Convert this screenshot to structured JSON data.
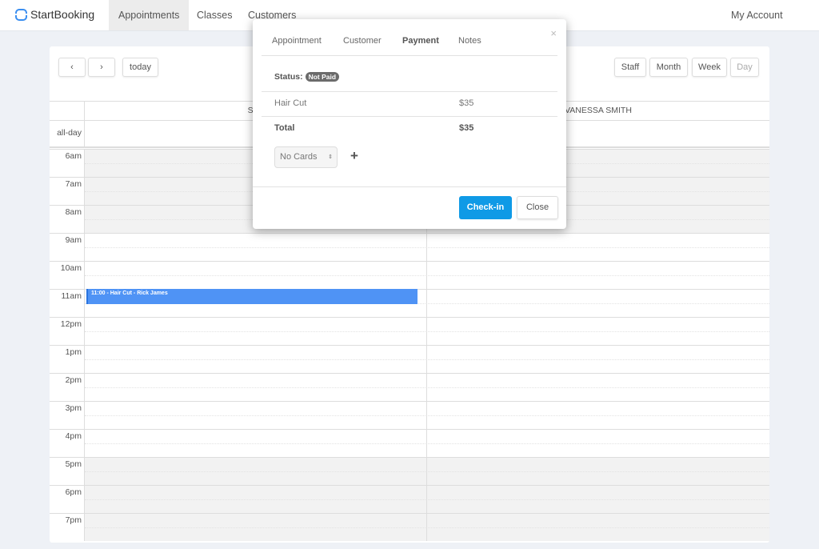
{
  "nav": {
    "brand": "StartBooking",
    "items": [
      {
        "label": "Appointments",
        "active": true
      },
      {
        "label": "Classes"
      },
      {
        "label": "Customers"
      }
    ],
    "account": "My Account"
  },
  "toolbar": {
    "today": "today",
    "views": [
      "Staff",
      "Month",
      "Week",
      "Day"
    ],
    "active_view": "Day"
  },
  "calendar": {
    "columns": [
      "SAL",
      "VANESSA SMITH"
    ],
    "allday": "all-day",
    "hours": [
      "6am",
      "7am",
      "8am",
      "9am",
      "10am",
      "11am",
      "12pm",
      "1pm",
      "2pm",
      "3pm",
      "4pm",
      "5pm",
      "6pm",
      "7pm"
    ],
    "event": {
      "time": "11:00 -",
      "title": "Hair Cut - Rick James",
      "color": "#4f93f5"
    }
  },
  "modal": {
    "tabs": [
      "Appointment",
      "Customer",
      "Payment",
      "Notes"
    ],
    "active_tab": "Payment",
    "close": "×",
    "status_label": "Status:",
    "status": "Not Paid",
    "line_item": {
      "name": "Hair Cut",
      "price": "$35"
    },
    "total": {
      "label": "Total",
      "price": "$35"
    },
    "card_select": "No Cards",
    "add": "+",
    "checkin": "Check-in",
    "close_btn": "Close",
    "accent": "#0f9ae6"
  }
}
